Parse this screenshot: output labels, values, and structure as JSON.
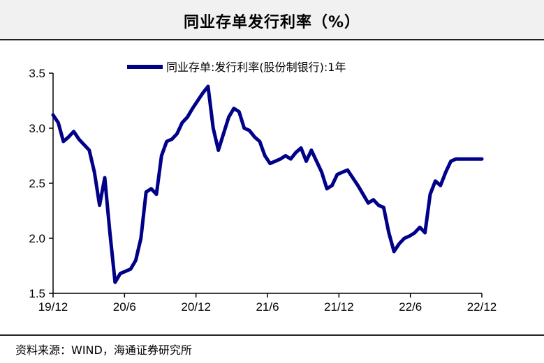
{
  "title": "同业存单发行利率（%）",
  "source": "资料来源：WIND，海通证券研究所",
  "chart_data": {
    "type": "line",
    "legend": {
      "position": "top-center"
    },
    "grid": false,
    "ylim": [
      1.5,
      3.5
    ],
    "yticks": [
      "1.5",
      "2.0",
      "2.5",
      "3.0",
      "3.5"
    ],
    "xticks": [
      "19/12",
      "20/6",
      "20/12",
      "21/6",
      "21/12",
      "22/6",
      "22/12"
    ],
    "series": [
      {
        "name": "同业存单:发行利率(股份制银行):1年",
        "color": "#000088",
        "x": [
          "19/12",
          "19/12",
          "20/1",
          "20/1",
          "20/1",
          "20/2",
          "20/2",
          "20/2",
          "20/3",
          "20/3",
          "20/3",
          "20/3",
          "20/4",
          "20/4",
          "20/4",
          "20/5",
          "20/5",
          "20/5",
          "20/6",
          "20/6",
          "20/6",
          "20/7",
          "20/7",
          "20/7",
          "20/8",
          "20/8",
          "20/9",
          "20/9",
          "20/10",
          "20/10",
          "20/11",
          "20/11",
          "20/11",
          "20/12",
          "20/12",
          "21/1",
          "21/1",
          "21/2",
          "21/2",
          "21/3",
          "21/3",
          "21/4",
          "21/4",
          "21/5",
          "21/5",
          "21/6",
          "21/6",
          "21/7",
          "21/7",
          "21/8",
          "21/8",
          "21/9",
          "21/9",
          "21/10",
          "21/10",
          "21/11",
          "21/11",
          "21/12",
          "21/12",
          "22/1",
          "22/1",
          "22/1",
          "22/2",
          "22/2",
          "22/3",
          "22/3",
          "22/4",
          "22/4",
          "22/5",
          "22/5",
          "22/6",
          "22/6",
          "22/7",
          "22/7",
          "22/8",
          "22/8",
          "22/9",
          "22/9",
          "22/10",
          "22/10",
          "22/11",
          "22/11",
          "22/11",
          "22/12"
        ],
        "values": [
          3.12,
          3.05,
          2.88,
          2.92,
          2.97,
          2.9,
          2.85,
          2.8,
          2.6,
          2.3,
          2.55,
          2.05,
          1.6,
          1.68,
          1.7,
          1.72,
          1.8,
          2.0,
          2.42,
          2.45,
          2.4,
          2.75,
          2.88,
          2.9,
          2.95,
          3.05,
          3.1,
          3.18,
          3.25,
          3.32,
          3.38,
          3.0,
          2.8,
          2.95,
          3.1,
          3.18,
          3.15,
          3.0,
          2.98,
          2.92,
          2.88,
          2.75,
          2.68,
          2.7,
          2.72,
          2.75,
          2.72,
          2.78,
          2.82,
          2.7,
          2.8,
          2.7,
          2.6,
          2.45,
          2.48,
          2.58,
          2.6,
          2.62,
          2.55,
          2.48,
          2.4,
          2.32,
          2.35,
          2.3,
          2.28,
          2.05,
          1.88,
          1.95,
          2.0,
          2.02,
          2.05,
          2.1,
          2.05,
          2.4,
          2.52,
          2.48,
          2.6,
          2.7,
          2.72,
          2.72,
          2.72,
          2.72,
          2.72,
          2.72
        ]
      }
    ]
  }
}
